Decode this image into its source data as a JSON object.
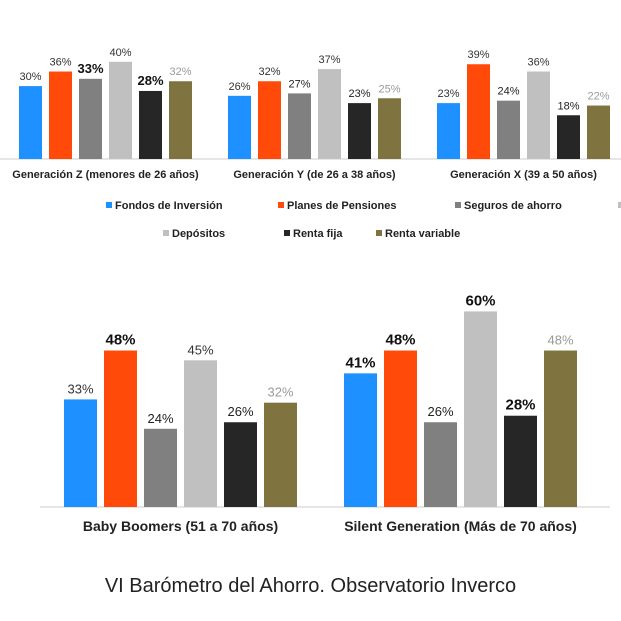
{
  "caption": "VI Barómetro del Ahorro. Observatorio Inverco",
  "chart_data": [
    {
      "type": "bar",
      "categories": [
        "Generación Z (menores de 26 años)",
        "Generación Y (de 26 a 38 años)",
        "Generación X (39 a 50 años)"
      ],
      "series": [
        {
          "name": "Fondos de Inversión",
          "color": "#1e90ff",
          "values": [
            30,
            26,
            23
          ]
        },
        {
          "name": "Planes de Pensiones",
          "color": "#ff4a0a",
          "values": [
            36,
            32,
            39
          ]
        },
        {
          "name": "Seguros de ahorro",
          "color": "#808080",
          "values": [
            33,
            27,
            24
          ]
        },
        {
          "name": "Depósitos",
          "color": "#c0c0c0",
          "values": [
            40,
            37,
            36
          ]
        },
        {
          "name": "Renta fija",
          "color": "#262626",
          "values": [
            28,
            23,
            18
          ]
        },
        {
          "name": "Renta variable",
          "color": "#7f7440",
          "values": [
            32,
            25,
            22
          ]
        }
      ],
      "value_suffix": "%",
      "legend": "bottom",
      "grid": false
    },
    {
      "type": "bar",
      "categories": [
        "Baby Boomers (51 a 70 años)",
        "Silent Generation (Más de 70 años)"
      ],
      "series": [
        {
          "name": "Fondos de Inversión",
          "color": "#1e90ff",
          "values": [
            33,
            41
          ]
        },
        {
          "name": "Planes de Pensiones",
          "color": "#ff4a0a",
          "values": [
            48,
            48
          ]
        },
        {
          "name": "Seguros de ahorro",
          "color": "#808080",
          "values": [
            24,
            26
          ]
        },
        {
          "name": "Depósitos",
          "color": "#c0c0c0",
          "values": [
            45,
            60
          ]
        },
        {
          "name": "Renta fija",
          "color": "#262626",
          "values": [
            26,
            28
          ]
        },
        {
          "name": "Renta variable",
          "color": "#7f7440",
          "values": [
            32,
            48
          ]
        }
      ],
      "value_suffix": "%",
      "grid": false
    }
  ]
}
